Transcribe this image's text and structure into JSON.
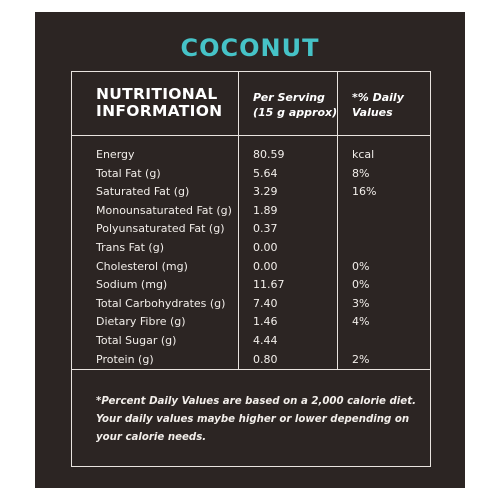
{
  "title": "COCONUT",
  "header": {
    "col1_line1": "NUTRITIONAL",
    "col1_line2": "INFORMATION",
    "col2_line1": "Per Serving",
    "col2_line2": "(15 g approx)",
    "col3_line1": "*% Daily",
    "col3_line2": "Values"
  },
  "rows": [
    {
      "name": "Energy",
      "value": "80.59",
      "dv": "kcal"
    },
    {
      "name": "Total Fat (g)",
      "value": "5.64",
      "dv": "8%"
    },
    {
      "name": "Saturated Fat (g)",
      "value": "3.29",
      "dv": "16%"
    },
    {
      "name": "Monounsaturated Fat (g)",
      "value": "1.89",
      "dv": ""
    },
    {
      "name": "Polyunsaturated Fat (g)",
      "value": "0.37",
      "dv": ""
    },
    {
      "name": "Trans Fat (g)",
      "value": "0.00",
      "dv": ""
    },
    {
      "name": "Cholesterol (mg)",
      "value": "0.00",
      "dv": "0%"
    },
    {
      "name": "Sodium (mg)",
      "value": "11.67",
      "dv": "0%"
    },
    {
      "name": "Total Carbohydrates (g)",
      "value": "7.40",
      "dv": "3%"
    },
    {
      "name": "Dietary Fibre (g)",
      "value": "1.46",
      "dv": "4%"
    },
    {
      "name": "Total Sugar (g)",
      "value": "4.44",
      "dv": ""
    },
    {
      "name": "Protein (g)",
      "value": "0.80",
      "dv": "2%"
    }
  ],
  "footnote": {
    "line1": "*Percent Daily Values are based on a 2,000 calorie diet.",
    "line2": "Your daily values maybe higher or lower depending on",
    "line3": "your calorie needs."
  },
  "colors": {
    "background": "#2c2523",
    "title": "#46c3c7",
    "text": "#f2eeea",
    "lines": "#e9e4df"
  }
}
